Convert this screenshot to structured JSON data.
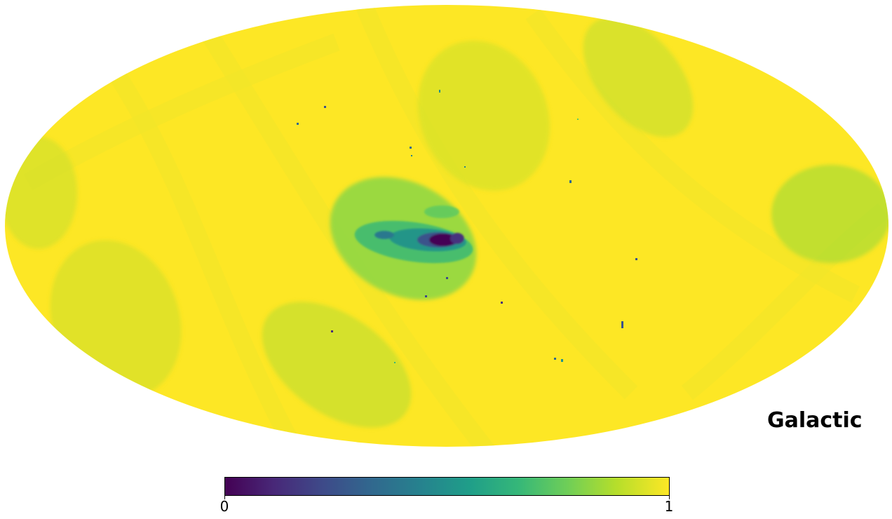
{
  "map": {
    "projection": "mollweide",
    "coord_system_label": "Galactic",
    "colormap": "viridis",
    "background_value_color": "#fde725",
    "colors": {
      "min": "#440154",
      "low": "#3b528b",
      "mid": "#21918c",
      "high": "#5ec962",
      "max": "#fde725"
    }
  },
  "colorbar": {
    "min_label": "0",
    "max_label": "1",
    "range": [
      0,
      1
    ]
  }
}
